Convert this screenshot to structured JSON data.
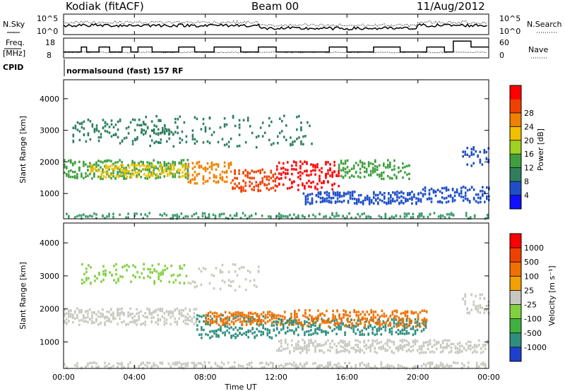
{
  "header": {
    "station": "Kodiak (fitACF)",
    "beam": "Beam 00",
    "date": "11/Aug/2012"
  },
  "strip_panels": {
    "nsky": {
      "label": "N.Sky",
      "ticks": [
        "10^5",
        "10^0"
      ],
      "right_ticks": [
        "10^5",
        "10^0"
      ],
      "right_label": "N.Search"
    },
    "freq": {
      "label_1": "Freq.",
      "label_2": "[MHz]",
      "ticks": [
        "18",
        "8"
      ],
      "right_ticks": [
        "60",
        "0"
      ],
      "right_label": "Nave"
    },
    "cpid": {
      "label": "CPID",
      "text": "normalsound (fast) 157 RF"
    }
  },
  "chart_data": [
    {
      "type": "heatmap",
      "name": "power",
      "ylabel": "Slant Range [km]",
      "yticks": [
        "1000",
        "2000",
        "3000",
        "4000"
      ],
      "ylim": [
        200,
        4600
      ],
      "xlim_hours": [
        0,
        24
      ],
      "colorbar": {
        "label": "Power [dB]",
        "ticks": [
          "4",
          "8",
          "12",
          "16",
          "20",
          "24",
          "28"
        ],
        "colors": [
          "#1010ff",
          "#1f4fc8",
          "#2f7f5f",
          "#3f9f3f",
          "#a0d020",
          "#f0c000",
          "#f08000",
          "#f04000",
          "#ff0000"
        ]
      },
      "bands": [
        {
          "t0": 0.0,
          "t1": 24.0,
          "r": 300,
          "dr": 120,
          "color": "#3a9a6a",
          "density": 0.25
        },
        {
          "t0": 0.0,
          "t1": 7.0,
          "r": 1800,
          "dr": 300,
          "color": "#3f9f3f",
          "density": 0.7
        },
        {
          "t0": 1.5,
          "t1": 7.0,
          "r": 1750,
          "dr": 200,
          "color": "#f0c000",
          "density": 0.5
        },
        {
          "t0": 0.5,
          "t1": 6.5,
          "r": 3000,
          "dr": 400,
          "color": "#2f7f5f",
          "density": 0.45
        },
        {
          "t0": 7.0,
          "t1": 9.5,
          "r": 1700,
          "dr": 350,
          "color": "#f08000",
          "density": 0.7
        },
        {
          "t0": 9.5,
          "t1": 12.0,
          "r": 1450,
          "dr": 350,
          "color": "#f04000",
          "density": 0.75
        },
        {
          "t0": 12.0,
          "t1": 15.5,
          "r": 1600,
          "dr": 450,
          "color": "#ff0000",
          "density": 0.8
        },
        {
          "t0": 15.5,
          "t1": 19.5,
          "r": 1800,
          "dr": 300,
          "color": "#3f9f3f",
          "density": 0.6
        },
        {
          "t0": 13.5,
          "t1": 20.0,
          "r": 900,
          "dr": 200,
          "color": "#1f4fc8",
          "density": 0.6
        },
        {
          "t0": 20.0,
          "t1": 24.0,
          "r": 1000,
          "dr": 250,
          "color": "#1f4fc8",
          "density": 0.55
        },
        {
          "t0": 22.5,
          "t1": 24.0,
          "r": 2200,
          "dr": 300,
          "color": "#1f4fc8",
          "density": 0.5
        },
        {
          "t0": 4.0,
          "t1": 14.0,
          "r": 3000,
          "dr": 500,
          "color": "#2f7f5f",
          "density": 0.25
        }
      ]
    },
    {
      "type": "heatmap",
      "name": "velocity",
      "ylabel": "Slant Range [km]",
      "yticks": [
        "1000",
        "2000",
        "3000",
        "4000"
      ],
      "ylim": [
        200,
        4600
      ],
      "xlim_hours": [
        0,
        24
      ],
      "colorbar": {
        "label": "Velocity [m s⁻¹]",
        "ticks": [
          "1000",
          "500",
          "100",
          "25",
          "-25",
          "-100",
          "-500",
          "-1000"
        ],
        "colors": [
          "#1f3fd0",
          "#2f8f7f",
          "#3faf3f",
          "#80d040",
          "#c8c8c0",
          "#f0a000",
          "#f07000",
          "#f04000",
          "#ff0000"
        ]
      },
      "bands": [
        {
          "t0": 0.0,
          "t1": 24.0,
          "r": 300,
          "dr": 120,
          "color": "#c8c8c0",
          "density": 0.3
        },
        {
          "t0": 0.0,
          "t1": 7.5,
          "r": 1800,
          "dr": 250,
          "color": "#c8c8c0",
          "density": 0.7
        },
        {
          "t0": 1.0,
          "t1": 7.0,
          "r": 3100,
          "dr": 300,
          "color": "#80d040",
          "density": 0.35
        },
        {
          "t0": 7.5,
          "t1": 12.0,
          "r": 1500,
          "dr": 350,
          "color": "#2f8f7f",
          "density": 0.7
        },
        {
          "t0": 8.0,
          "t1": 13.0,
          "r": 1750,
          "dr": 200,
          "color": "#f07000",
          "density": 0.6
        },
        {
          "t0": 12.0,
          "t1": 20.5,
          "r": 1500,
          "dr": 250,
          "color": "#2f8f7f",
          "density": 0.6
        },
        {
          "t0": 13.0,
          "t1": 20.5,
          "r": 1750,
          "dr": 250,
          "color": "#f07000",
          "density": 0.6
        },
        {
          "t0": 12.0,
          "t1": 24.0,
          "r": 900,
          "dr": 200,
          "color": "#c8c8c0",
          "density": 0.55
        },
        {
          "t0": 22.5,
          "t1": 24.0,
          "r": 2200,
          "dr": 300,
          "color": "#c8c8c0",
          "density": 0.5
        },
        {
          "t0": 7.0,
          "t1": 11.0,
          "r": 3000,
          "dr": 400,
          "color": "#c8c8c0",
          "density": 0.25
        }
      ]
    }
  ],
  "x_axis": {
    "ticks": [
      "00:00",
      "04:00",
      "08:00",
      "12:00",
      "16:00",
      "20:00",
      "00:00"
    ],
    "label": "Time UT"
  }
}
